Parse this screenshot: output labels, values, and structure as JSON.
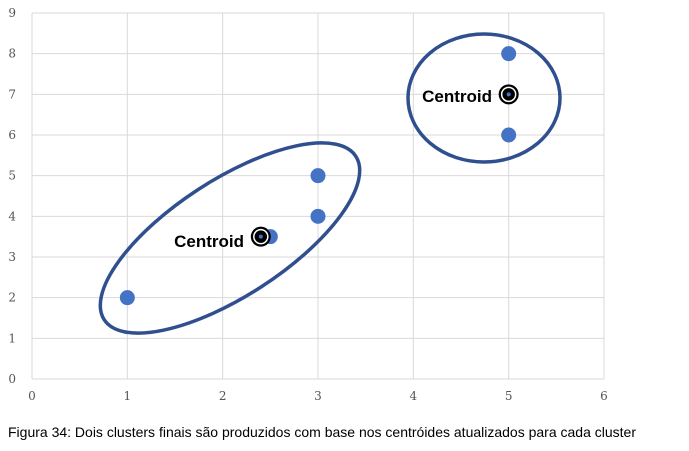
{
  "chart_data": {
    "type": "scatter",
    "xlim": [
      0,
      6
    ],
    "ylim": [
      0,
      9
    ],
    "x_ticks": [
      0,
      1,
      2,
      3,
      4,
      5,
      6
    ],
    "y_ticks": [
      0,
      1,
      2,
      3,
      4,
      5,
      6,
      7,
      8,
      9
    ],
    "grid": true,
    "points": [
      {
        "x": 1,
        "y": 2
      },
      {
        "x": 2.5,
        "y": 3.5
      },
      {
        "x": 3,
        "y": 4
      },
      {
        "x": 3,
        "y": 5
      },
      {
        "x": 5,
        "y": 6
      },
      {
        "x": 5,
        "y": 8
      }
    ],
    "centroids": [
      {
        "x": 2.4,
        "y": 3.5,
        "label": "Centroid"
      },
      {
        "x": 5,
        "y": 7,
        "label": "Centroid"
      }
    ],
    "colors": {
      "point": "#4472c4",
      "cluster_outline": "#2f4f8f",
      "centroid": "#000000",
      "grid": "#d9d9d9"
    }
  },
  "caption": "Figura 34: Dois clusters finais são produzidos com base nos centróides atualizados para cada cluster"
}
